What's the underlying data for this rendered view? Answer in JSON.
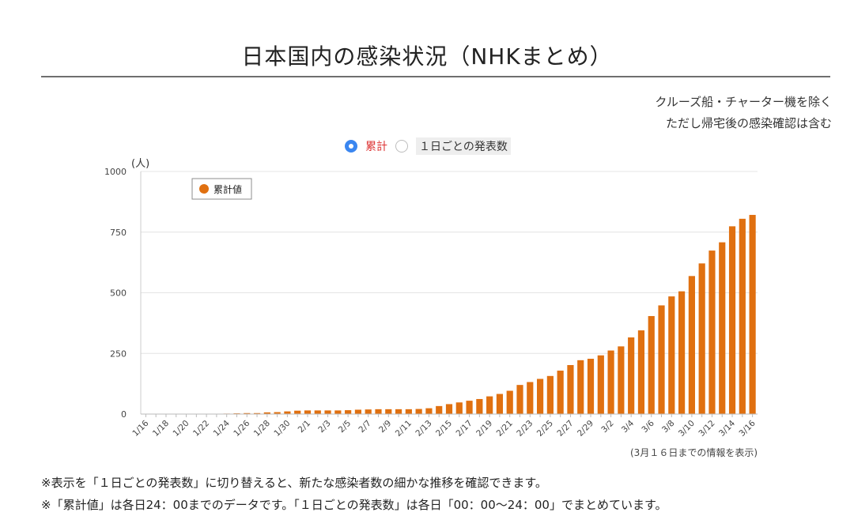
{
  "page": {
    "title": "日本国内の感染状況（NHKまとめ）",
    "note_line1": "クルーズ船・チャーター機を除く",
    "note_line2": "ただし帰宅後の感染確認は含む",
    "toggle": {
      "option_cumulative": "累計",
      "option_daily": "１日ごとの発表数",
      "selected": "cumulative"
    },
    "footnote1": "※表示を「１日ごとの発表数」に切り替えると、新たな感染者数の細かな推移を確認できます。",
    "footnote2": "※「累計値」は各日24：00までのデータです。「１日ごとの発表数」は各日「00：00〜24：00」でまとめています。"
  },
  "colors": {
    "bar": "#e07010",
    "accent": "#3a86f0",
    "grid": "#e4e4e4"
  },
  "chart_data": {
    "type": "bar",
    "title": "",
    "xlabel": "",
    "ylabel": "(人)",
    "ylim": [
      0,
      1000
    ],
    "yticks": [
      0,
      250,
      500,
      750,
      1000
    ],
    "ytick_labels": [
      "0",
      "250",
      "500",
      "750",
      "1000"
    ],
    "legend": "累計値",
    "legend_position": "top-left",
    "source_note": "(3月１６日までの情報を表示)",
    "categories": [
      "1/16",
      "1/17",
      "1/18",
      "1/19",
      "1/20",
      "1/21",
      "1/22",
      "1/23",
      "1/24",
      "1/25",
      "1/26",
      "1/27",
      "1/28",
      "1/29",
      "1/30",
      "1/31",
      "2/1",
      "2/2",
      "2/3",
      "2/4",
      "2/5",
      "2/6",
      "2/7",
      "2/8",
      "2/9",
      "2/10",
      "2/11",
      "2/12",
      "2/13",
      "2/14",
      "2/15",
      "2/16",
      "2/17",
      "2/18",
      "2/19",
      "2/20",
      "2/21",
      "2/22",
      "2/23",
      "2/24",
      "2/25",
      "2/26",
      "2/27",
      "2/28",
      "2/29",
      "3/1",
      "3/2",
      "3/3",
      "3/4",
      "3/5",
      "3/6",
      "3/7",
      "3/8",
      "3/9",
      "3/10",
      "3/11",
      "3/12",
      "3/13",
      "3/14",
      "3/15",
      "3/16"
    ],
    "tick_labels_shown": [
      "1/16",
      "1/18",
      "1/20",
      "1/22",
      "1/24",
      "1/26",
      "1/28",
      "1/30",
      "2/1",
      "2/3",
      "2/5",
      "2/7",
      "2/9",
      "2/11",
      "2/13",
      "2/15",
      "2/17",
      "2/19",
      "2/21",
      "2/23",
      "2/25",
      "2/27",
      "2/29",
      "3/2",
      "3/4",
      "3/6",
      "3/8",
      "3/10",
      "3/12",
      "3/14",
      "3/16"
    ],
    "series": [
      {
        "name": "累計値",
        "values": [
          1,
          1,
          1,
          1,
          1,
          1,
          1,
          1,
          2,
          3,
          4,
          4,
          7,
          8,
          11,
          14,
          15,
          15,
          15,
          15,
          16,
          18,
          19,
          20,
          20,
          20,
          20,
          21,
          24,
          33,
          41,
          48,
          55,
          62,
          73,
          83,
          96,
          120,
          132,
          145,
          157,
          179,
          202,
          222,
          228,
          242,
          262,
          279,
          316,
          345,
          404,
          448,
          485,
          506,
          569,
          621,
          674,
          708,
          774,
          805,
          821
        ]
      }
    ]
  }
}
